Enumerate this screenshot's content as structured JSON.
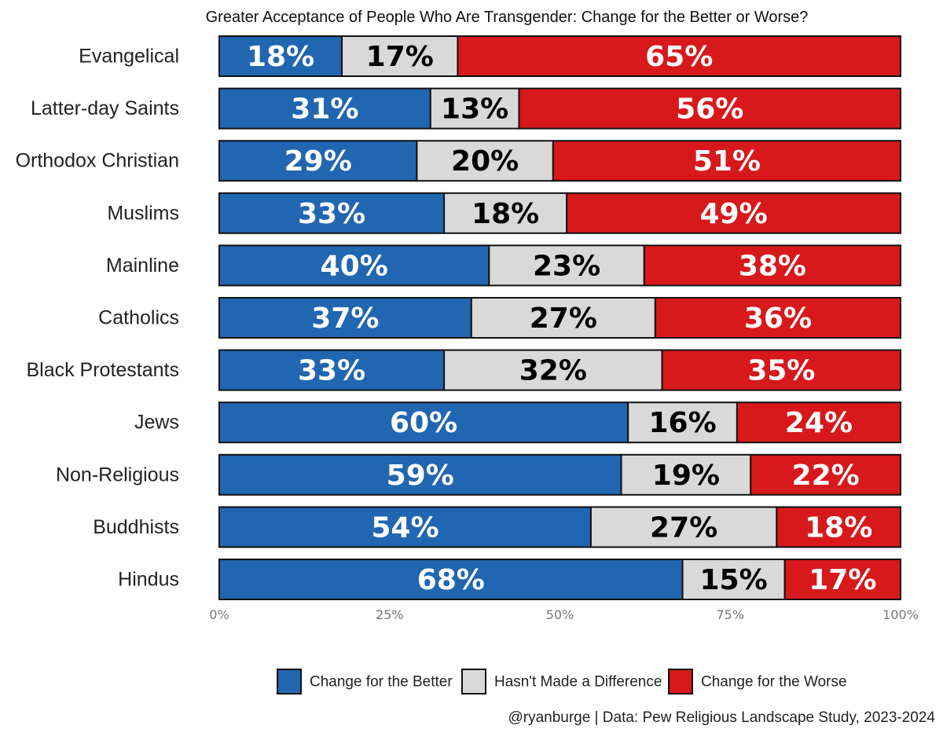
{
  "chart_data": {
    "type": "bar",
    "orientation": "horizontal",
    "stacked": true,
    "title": "Greater Acceptance of People Who Are Transgender: Change for the Better or Worse?",
    "categories": [
      "Evangelical",
      "Latter-day Saints",
      "Orthodox Christian",
      "Muslims",
      "Mainline",
      "Catholics",
      "Black Protestants",
      "Jews",
      "Non-Religious",
      "Buddhists",
      "Hindus"
    ],
    "series": [
      {
        "name": "Change for the Better",
        "color": "#2166b0",
        "label_color": "#ffffff",
        "values": [
          18,
          31,
          29,
          33,
          40,
          37,
          33,
          60,
          59,
          54,
          68
        ],
        "labels": [
          "18%",
          "31%",
          "29%",
          "33%",
          "40%",
          "37%",
          "33%",
          "60%",
          "59%",
          "54%",
          "68%"
        ]
      },
      {
        "name": "Hasn't Made a Difference",
        "color": "#d9d9d9",
        "label_color": "#000000",
        "values": [
          17,
          13,
          20,
          18,
          23,
          27,
          32,
          16,
          19,
          27,
          15
        ],
        "labels": [
          "17%",
          "13%",
          "20%",
          "18%",
          "23%",
          "27%",
          "32%",
          "16%",
          "19%",
          "27%",
          "15%"
        ]
      },
      {
        "name": "Change for the Worse",
        "color": "#d7191c",
        "label_color": "#ffffff",
        "values": [
          65,
          56,
          51,
          49,
          38,
          36,
          35,
          24,
          22,
          18,
          17
        ],
        "labels": [
          "65%",
          "56%",
          "51%",
          "49%",
          "38%",
          "36%",
          "35%",
          "24%",
          "22%",
          "18%",
          "17%"
        ]
      }
    ],
    "xlim": [
      0,
      100
    ],
    "xticks": [
      0,
      25,
      50,
      75,
      100
    ],
    "xtick_labels": [
      "0%",
      "25%",
      "50%",
      "75%",
      "100%"
    ],
    "xlabel": "",
    "ylabel": "",
    "grid": false,
    "legend_position": "bottom",
    "caption": "@ryanburge | Data: Pew Religious Landscape Study, 2023-2024"
  }
}
